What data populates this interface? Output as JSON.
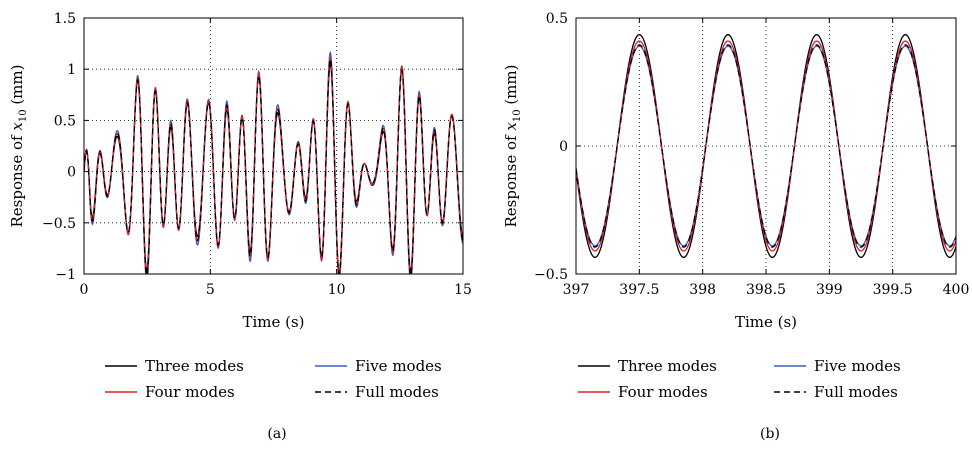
{
  "chart_data": [
    {
      "type": "line",
      "caption": "(a)",
      "xlabel": "Time (s)",
      "ylabel": {
        "prefix": "Response of ",
        "var": "x",
        "sub": "10",
        "suffix": " (mm)"
      },
      "xlim": [
        0,
        15
      ],
      "ylim": [
        -1,
        1.5
      ],
      "xticks": [
        0,
        5,
        10,
        15
      ],
      "xtick_labels": [
        "0",
        "5",
        "10",
        "15"
      ],
      "yticks": [
        -1,
        -0.5,
        0,
        0.5,
        1,
        1.5
      ],
      "ytick_labels": [
        "−1",
        "−0.5",
        "0",
        "0.5",
        "1",
        "1.5"
      ],
      "grid": "dotted",
      "waveform": {
        "t_end": 15,
        "components": [
          {
            "amp": 0.55,
            "freq_hz": 1.434,
            "phase": 1.6
          },
          {
            "amp": 0.3,
            "freq_hz": 1.05,
            "phase": 0.4
          },
          {
            "amp": 0.22,
            "freq_hz": 1.73,
            "phase": 2.4
          }
        ]
      },
      "series": [
        {
          "name": "Three modes",
          "color": "#000000",
          "dash": "solid",
          "scale": 1.0,
          "shift": 0.0
        },
        {
          "name": "Five modes",
          "color": "#3a5bc7",
          "dash": "solid",
          "scale": 1.07,
          "shift": -0.04
        },
        {
          "name": "Four modes",
          "color": "#e02020",
          "dash": "solid",
          "scale": 1.04,
          "shift": -0.02
        },
        {
          "name": "Full modes",
          "color": "#000000",
          "dash": "dashed",
          "scale": 1.02,
          "shift": -0.03
        }
      ],
      "legend_rows": [
        [
          "Three modes",
          "Five modes"
        ],
        [
          "Four modes",
          "Full modes"
        ]
      ]
    },
    {
      "type": "line",
      "caption": "(b)",
      "xlabel": "Time (s)",
      "ylabel": {
        "prefix": "Response of ",
        "var": "x",
        "sub": "10",
        "suffix": " (mm)"
      },
      "xlim": [
        397,
        400
      ],
      "ylim": [
        -0.5,
        0.5
      ],
      "xticks": [
        397,
        397.5,
        398,
        398.5,
        399,
        399.5,
        400
      ],
      "xtick_labels": [
        "397",
        "397.5",
        "398",
        "398.5",
        "399",
        "399.5",
        "400"
      ],
      "yticks": [
        -0.5,
        0,
        0.5
      ],
      "ytick_labels": [
        "−0.5",
        "0",
        "0.5"
      ],
      "grid": "dotted",
      "waveform": {
        "period_s": 0.7,
        "peak_time_s": 397.5
      },
      "series": [
        {
          "name": "Three modes",
          "color": "#000000",
          "dash": "solid",
          "amplitude": 0.435
        },
        {
          "name": "Five modes",
          "color": "#3a5bc7",
          "dash": "solid",
          "amplitude": 0.39
        },
        {
          "name": "Four modes",
          "color": "#e02020",
          "dash": "solid",
          "amplitude": 0.41
        },
        {
          "name": "Full modes",
          "color": "#000000",
          "dash": "dashed",
          "amplitude": 0.395
        }
      ],
      "legend_rows": [
        [
          "Three modes",
          "Five modes"
        ],
        [
          "Four modes",
          "Full modes"
        ]
      ]
    }
  ]
}
